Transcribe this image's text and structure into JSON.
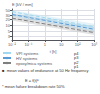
{
  "chart_data": {
    "type": "line",
    "xlabel": "t [h]",
    "ylabel": "E [kV / mm]",
    "log": true,
    "xlim": [
      0.01,
      1000
    ],
    "ylim": [
      2,
      60
    ],
    "xticks": [
      {
        "value": 0.01,
        "label": "10⁻²"
      },
      {
        "value": 0.1,
        "label": "10⁻¹"
      },
      1,
      10,
      {
        "value": 100,
        "label": "10²"
      },
      {
        "value": 1000,
        "label": "10³"
      }
    ],
    "yticks": [
      3,
      5,
      10,
      20,
      30,
      50
    ],
    "grid": true,
    "legend": "bottom",
    "series": [
      {
        "name": "VPI systems",
        "color": "#a0d8ef",
        "line_style": "dashed",
        "x": [
          0.01,
          1000
        ],
        "values": [
          45,
          8.5
        ]
      },
      {
        "name": "HV systems",
        "color": "#5b9bd5",
        "line_style": "dashed",
        "x": [
          0.01,
          1000
        ],
        "values": [
          33,
          6.5
        ]
      },
      {
        "name": "epoxy/mica systems",
        "color": "#7f7f7f",
        "line_style": "dashed",
        "x": [
          0.01,
          1000
        ],
        "values": [
          22,
          4.5
        ]
      }
    ],
    "bands": [
      {
        "color": "#cce8f4",
        "x": [
          0.01,
          1000
        ],
        "upper": [
          52,
          12.0
        ],
        "lower": [
          38,
          6.5
        ]
      },
      {
        "color": "#9ec9e2",
        "x": [
          0.01,
          1000
        ],
        "upper": [
          38,
          8.5
        ],
        "lower": [
          26,
          5.0
        ]
      },
      {
        "color": "#c8c8c8",
        "x": [
          0.01,
          1000
        ],
        "upper": [
          27,
          5.5
        ],
        "lower": [
          17,
          3.5
        ]
      }
    ],
    "annotations": [
      "p4",
      "p3",
      "p2",
      "p1",
      "■  mean values of endurance at 50 Hz frequency",
      "E = f(t)ᵃ",
      "* mean failure breakdown rate 50%"
    ]
  }
}
